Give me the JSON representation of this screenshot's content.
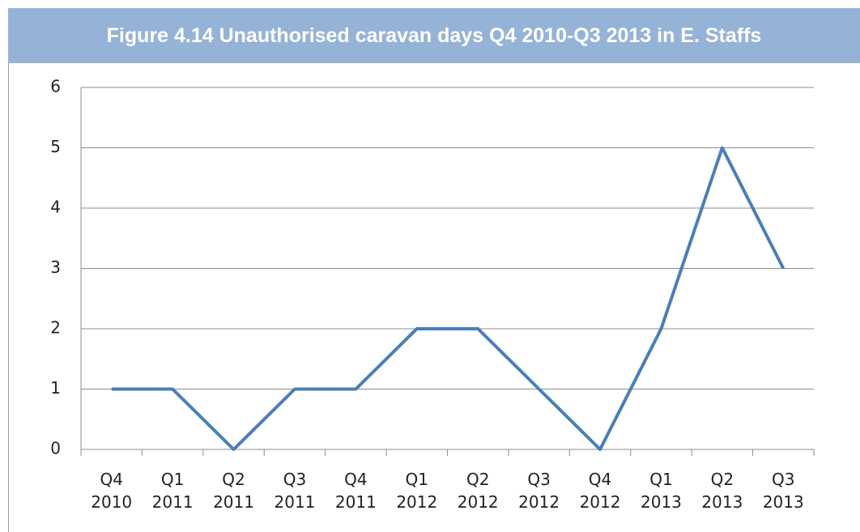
{
  "chart_data": {
    "type": "line",
    "title": "Figure 4.14 Unauthorised caravan days Q4 2010-Q3 2013 in E. Staffs",
    "categories": [
      "Q4 2010",
      "Q1 2011",
      "Q2 2011",
      "Q3 2011",
      "Q4 2011",
      "Q1 2012",
      "Q2 2012",
      "Q3 2012",
      "Q4 2012",
      "Q1 2013",
      "Q2 2013",
      "Q3 2013"
    ],
    "values": [
      1,
      1,
      0,
      1,
      1,
      2,
      2,
      1,
      0,
      2,
      5,
      3
    ],
    "color": "#4a7ebb",
    "ylim": [
      0,
      6
    ],
    "yticks": [
      0,
      1,
      2,
      3,
      4,
      5,
      6
    ],
    "grid": true
  }
}
